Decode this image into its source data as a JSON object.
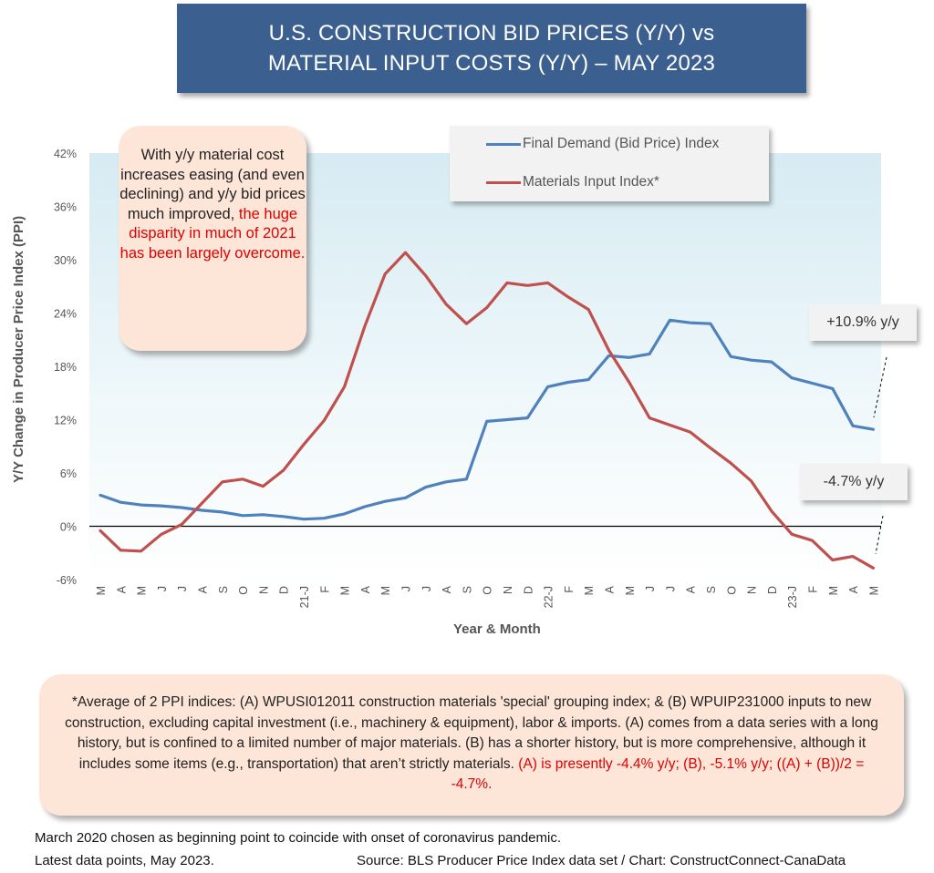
{
  "title": {
    "line1": "U.S. CONSTRUCTION BID PRICES (Y/Y) vs",
    "line2": "MATERIAL INPUT COSTS (Y/Y) –  MAY 2023"
  },
  "callout": {
    "text_plain": "With y/y material cost increases easing (and even declining) and y/y bid prices much improved,",
    "text_red": "the huge disparity in much of 2021 has been largely overcome."
  },
  "legend": {
    "entries": [
      {
        "label": "Final Demand (Bid Price) Index",
        "color": "#4f81bd"
      },
      {
        "label": "Materials Input Index*",
        "color": "#c0504d"
      }
    ]
  },
  "tags": {
    "final_demand": "+10.9% y/y",
    "materials": "-4.7% y/y"
  },
  "note": {
    "text_plain": "*Average of 2 PPI indices: (A) WPUSI012011 construction materials 'special' grouping index; & (B) WPUIP231000 inputs to new construction, excluding capital investment (i.e., machinery & equipment), labor & imports. (A) comes from a data series with a long history, but is confined to a limited number of major materials. (B) has a shorter history, but is more comprehensive, although it includes some items (e.g., transportation) that aren’t strictly materials.",
    "text_red": "(A) is presently -4.4% y/y; (B), -5.1% y/y; ((A) + (B))/2 = -4.7%."
  },
  "footer": {
    "line1": "March 2020 chosen as beginning point to coincide with onset of coronavirus pandemic.",
    "line2": "Latest data points, May 2023.",
    "source": "Source: BLS Producer Price Index data set / Chart: ConstructConnect-CanaData"
  },
  "chart_data": {
    "type": "line",
    "title": "U.S. CONSTRUCTION BID PRICES (Y/Y) vs MATERIAL INPUT COSTS (Y/Y) –  MAY 2023",
    "xlabel": "Year & Month",
    "ylabel": "Y/Y Change in Producer Price Index (PPI)",
    "ylim": [
      -6,
      42
    ],
    "yticks": [
      "-6%",
      "0%",
      "6%",
      "12%",
      "18%",
      "24%",
      "30%",
      "36%",
      "42%"
    ],
    "ytick_values": [
      -6,
      0,
      6,
      12,
      18,
      24,
      30,
      36,
      42
    ],
    "categories": [
      "M",
      "A",
      "M",
      "J",
      "J",
      "A",
      "S",
      "O",
      "N",
      "D",
      "21-J",
      "F",
      "M",
      "A",
      "M",
      "J",
      "J",
      "A",
      "S",
      "O",
      "N",
      "D",
      "22-J",
      "F",
      "M",
      "A",
      "M",
      "J",
      "J",
      "A",
      "S",
      "O",
      "N",
      "D",
      "23-J",
      "F",
      "M",
      "A",
      "M"
    ],
    "series": [
      {
        "name": "Final Demand (Bid Price) Index",
        "color": "#4f81bd",
        "values": [
          3.5,
          2.7,
          2.4,
          2.3,
          2.1,
          1.8,
          1.6,
          1.2,
          1.3,
          1.1,
          0.8,
          0.9,
          1.4,
          2.2,
          2.8,
          3.2,
          4.4,
          5.0,
          5.3,
          11.8,
          12.0,
          12.2,
          15.7,
          16.2,
          16.5,
          19.2,
          19.0,
          19.4,
          23.2,
          22.9,
          22.8,
          19.1,
          18.7,
          18.5,
          16.7,
          16.1,
          15.5,
          11.3,
          10.9
        ]
      },
      {
        "name": "Materials Input Index*",
        "color": "#c0504d",
        "values": [
          -0.5,
          -2.7,
          -2.8,
          -0.9,
          0.2,
          2.6,
          5.0,
          5.3,
          4.5,
          6.3,
          9.2,
          11.9,
          15.7,
          22.5,
          28.4,
          30.8,
          28.2,
          25.0,
          22.8,
          24.6,
          27.4,
          27.1,
          27.4,
          25.8,
          24.4,
          19.8,
          16.2,
          12.2,
          11.4,
          10.6,
          8.8,
          7.1,
          5.1,
          1.7,
          -0.9,
          -1.6,
          -3.8,
          -3.4,
          -4.7
        ]
      }
    ],
    "annotations": [
      "+10.9% y/y",
      "-4.7% y/y"
    ],
    "grid": false,
    "legend_position": "top-right"
  }
}
